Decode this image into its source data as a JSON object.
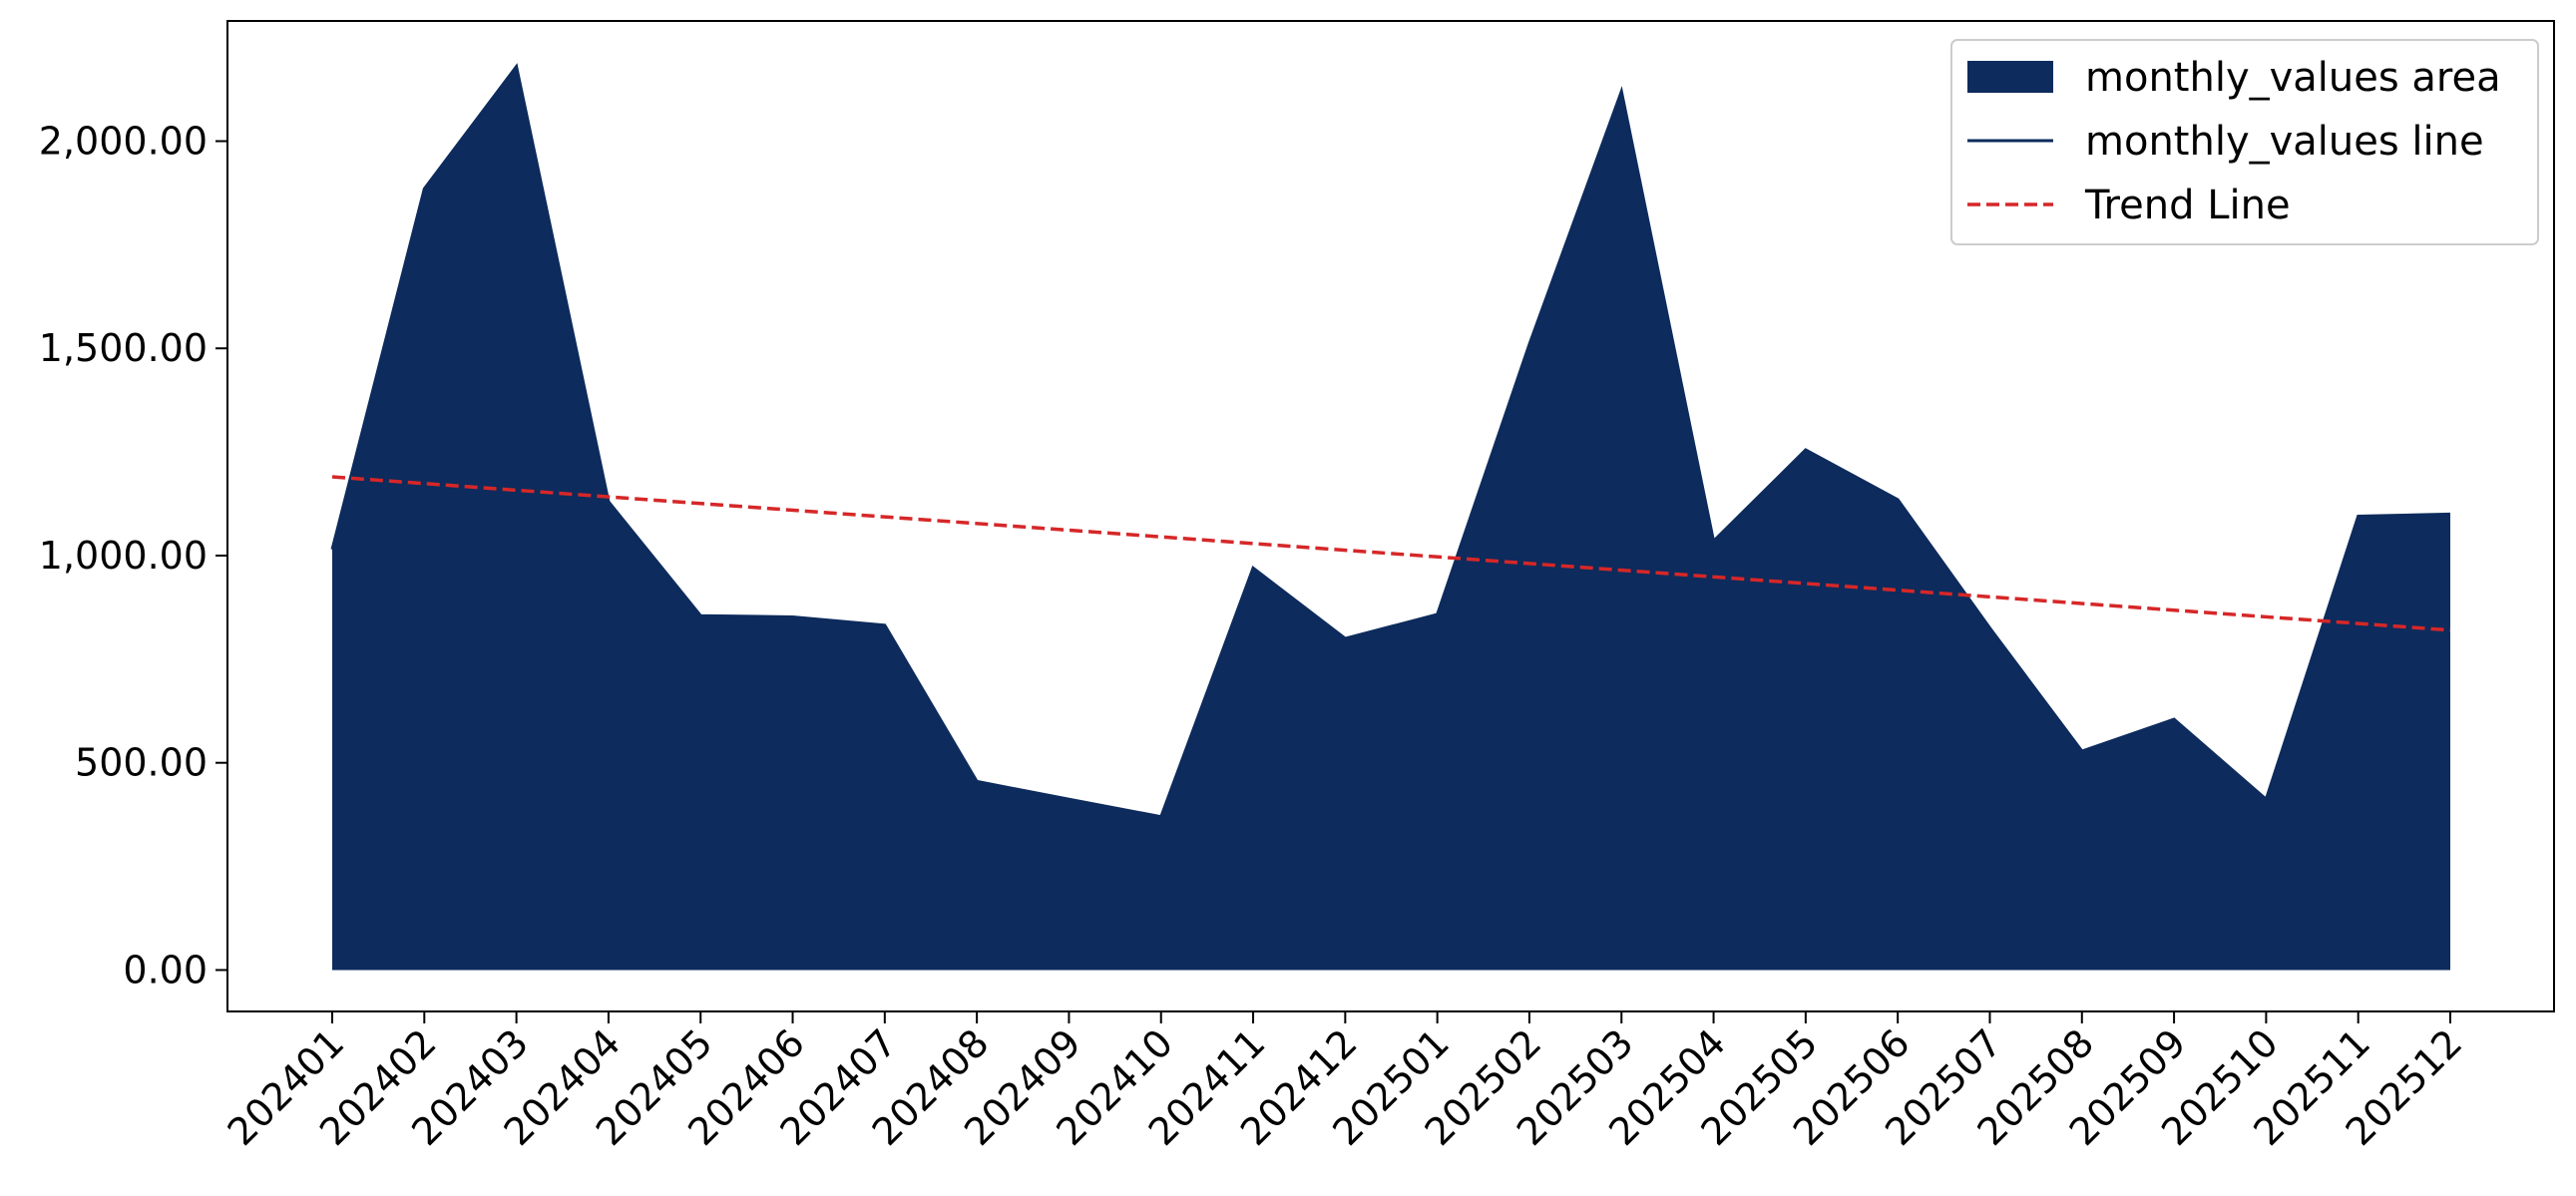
{
  "chart_data": {
    "type": "area",
    "categories": [
      "202401",
      "202402",
      "202403",
      "202404",
      "202405",
      "202406",
      "202407",
      "202408",
      "202409",
      "202410",
      "202411",
      "202412",
      "202501",
      "202502",
      "202503",
      "202504",
      "202505",
      "202506",
      "202507",
      "202508",
      "202509",
      "202510",
      "202511",
      "202512"
    ],
    "series": [
      {
        "name": "monthly_values area",
        "kind": "area",
        "color": "#0d2b5c",
        "values": [
          1015,
          1885,
          2180,
          1130,
          855,
          852,
          832,
          455,
          412,
          370,
          970,
          800,
          858,
          1510,
          2120,
          1035,
          1255,
          1135,
          825,
          528,
          605,
          412,
          1095,
          1100
        ]
      },
      {
        "name": "monthly_values line",
        "kind": "line",
        "color": "#0d2b5c",
        "values": [
          1015,
          1885,
          2180,
          1130,
          855,
          852,
          832,
          455,
          412,
          370,
          970,
          800,
          858,
          1510,
          2120,
          1035,
          1255,
          1135,
          825,
          528,
          605,
          412,
          1095,
          1100
        ]
      },
      {
        "name": "Trend Line",
        "kind": "trend",
        "color": "#d62728",
        "start": 1190,
        "end": 820
      }
    ],
    "yticks": [
      0,
      500,
      1000,
      1500,
      2000
    ],
    "ytick_labels": [
      "0.00",
      "500.00",
      "1,000.00",
      "1,500.00",
      "2,000.00"
    ],
    "ylim": [
      -100,
      2290
    ],
    "legend_position": "top-right",
    "grid": false,
    "title": "",
    "xlabel": "",
    "ylabel": ""
  }
}
